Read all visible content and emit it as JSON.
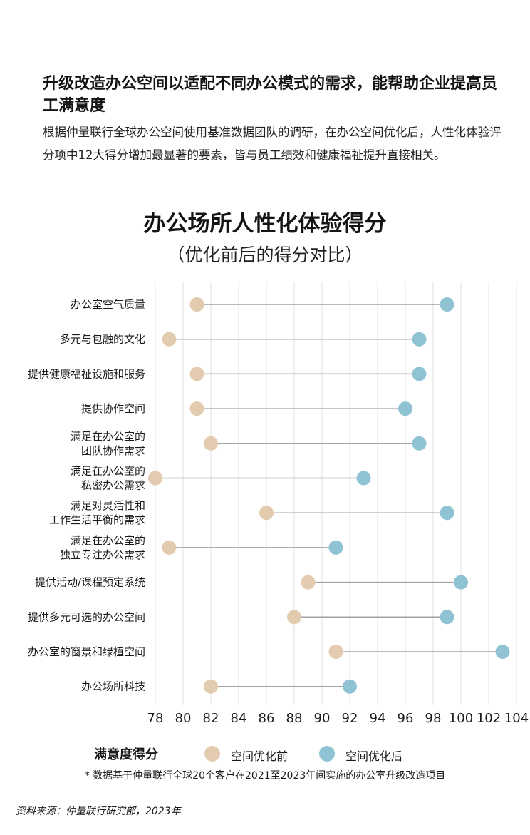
{
  "headline": "升级改造办公空间以适配不同办公模式的需求，能帮助企业提高员工满意度",
  "intro": "根据仲量联行全球办公空间使用基准数据团队的调研，在办公空间优化后，人性化体验评分项中12大得分增加最显著的要素，皆与员工绩效和健康福祉提升直接相关。",
  "colors": {
    "before": "#e2cbae",
    "after": "#8fc3d3",
    "connector": "#a3a3a3",
    "grid": "#e6e6e6"
  },
  "chart_data": {
    "type": "dumbbell",
    "title": "办公场所人性化体验得分",
    "subtitle": "（优化前后的得分对比）",
    "xlim": [
      78,
      104
    ],
    "xticks": [
      78,
      80,
      82,
      84,
      86,
      88,
      90,
      92,
      94,
      96,
      98,
      100,
      102,
      104
    ],
    "grid": "vertical",
    "categories": [
      [
        "办公室空气质量"
      ],
      [
        "多元与包融的文化"
      ],
      [
        "提供健康福祉设施和服务"
      ],
      [
        "提供协作空间"
      ],
      [
        "满足在办公室的",
        "团队协作需求"
      ],
      [
        "满足在办公室的",
        "私密办公需求"
      ],
      [
        "满足对灵活性和",
        "工作生活平衡的需求"
      ],
      [
        "满足在办公室的",
        "独立专注办公需求"
      ],
      [
        "提供活动/课程预定系统"
      ],
      [
        "提供多元可选的办公空间"
      ],
      [
        "办公室的窗景和绿植空间"
      ],
      [
        "办公场所科技"
      ]
    ],
    "series": [
      {
        "name": "空间优化前",
        "values": [
          81,
          79,
          81,
          81,
          82,
          78,
          86,
          79,
          89,
          88,
          91,
          82
        ]
      },
      {
        "name": "空间优化后",
        "values": [
          99,
          97,
          97,
          96,
          97,
          93,
          99,
          91,
          100,
          99,
          103,
          92
        ]
      }
    ],
    "legend": {
      "title": "满意度得分",
      "placement": "bottom"
    }
  },
  "footnote": "* 数据基于仲量联行全球20个客户在2021至2023年间实施的办公室升级改造项目",
  "source": "资料来源：仲量联行研究部，2023年"
}
